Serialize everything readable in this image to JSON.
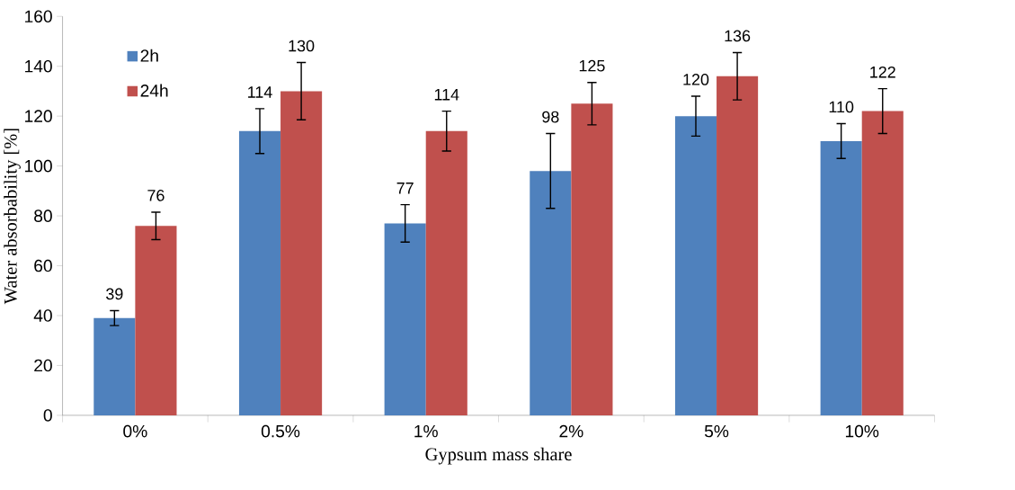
{
  "chart_data": {
    "type": "bar",
    "xlabel": "Gypsum mass share",
    "ylabel": "Water absorbability [%]",
    "categories": [
      "0%",
      "0.5%",
      "1%",
      "2%",
      "5%",
      "10%"
    ],
    "series": [
      {
        "name": "2h",
        "color": "#4f81bd",
        "values": [
          39,
          114,
          77,
          98,
          120,
          110
        ],
        "errors": [
          3,
          9,
          7.5,
          15,
          8,
          7
        ]
      },
      {
        "name": "24h",
        "color": "#c0504d",
        "values": [
          76,
          130,
          114,
          125,
          136,
          122
        ],
        "errors": [
          5.5,
          11.5,
          8,
          8.5,
          9.5,
          9
        ]
      }
    ],
    "ylim": [
      0,
      160
    ],
    "yticks": [
      0,
      20,
      40,
      60,
      80,
      100,
      120,
      140,
      160
    ],
    "data_labels": true,
    "legend": "top left",
    "grid": false
  }
}
